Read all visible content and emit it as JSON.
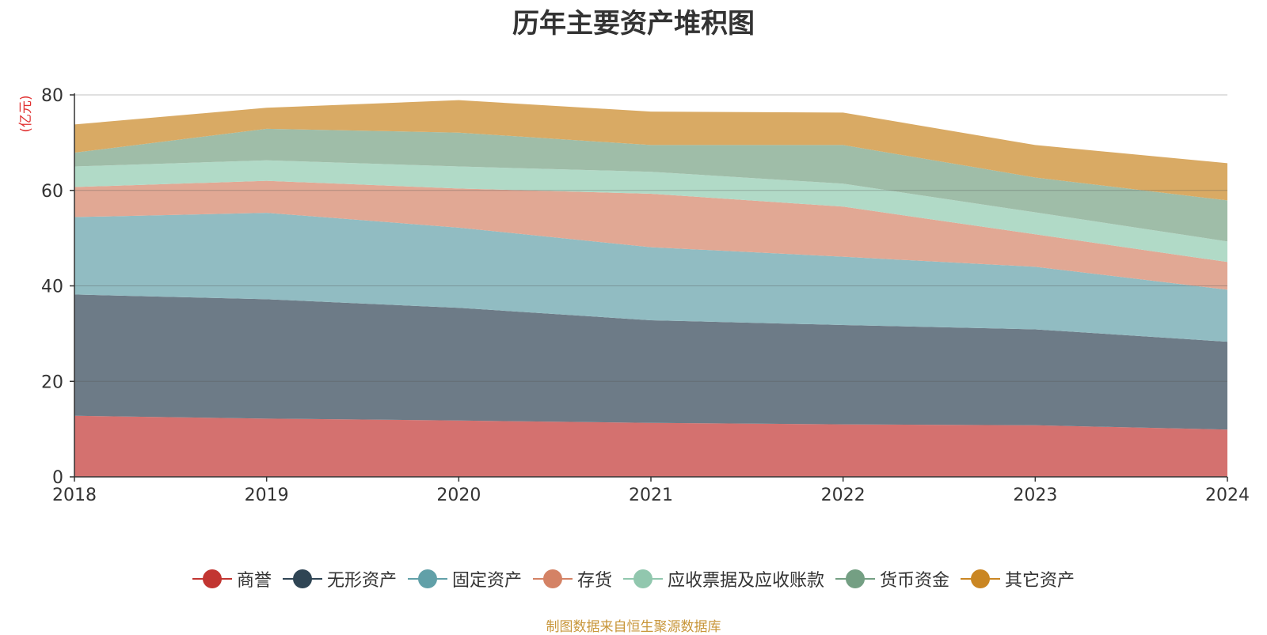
{
  "chart_data": {
    "type": "area",
    "stacked": true,
    "title": "历年主要资产堆积图",
    "ylabel": "(亿元)",
    "xlabel": "",
    "x": [
      "2018",
      "2019",
      "2020",
      "2021",
      "2022",
      "2023",
      "2024"
    ],
    "ylim": [
      0,
      80
    ],
    "yticks": [
      "0",
      "20",
      "40",
      "60",
      "80"
    ],
    "grid": true,
    "legend_position": "bottom",
    "series": [
      {
        "name": "商誉",
        "color": "#c23531",
        "fill": "#d4716f",
        "values": [
          12.8,
          12.2,
          11.8,
          11.3,
          11.0,
          10.8,
          9.9
        ]
      },
      {
        "name": "无形资产",
        "color": "#2f4554",
        "fill": "#6d7b87",
        "values": [
          25.4,
          25.0,
          23.6,
          21.5,
          20.8,
          20.1,
          18.4
        ]
      },
      {
        "name": "固定资产",
        "color": "#61a0a8",
        "fill": "#91bcc2",
        "values": [
          16.2,
          18.1,
          16.8,
          15.3,
          14.3,
          13.1,
          10.9
        ]
      },
      {
        "name": "存货",
        "color": "#d48265",
        "fill": "#e1a894",
        "values": [
          6.3,
          6.7,
          8.2,
          11.2,
          10.5,
          6.8,
          5.8
        ]
      },
      {
        "name": "应收票据及应收账款",
        "color": "#91c7ae",
        "fill": "#b1dac7",
        "values": [
          4.3,
          4.3,
          4.6,
          4.6,
          4.8,
          4.6,
          4.3
        ]
      },
      {
        "name": "货币资金",
        "color": "#749f83",
        "fill": "#9fbda8",
        "values": [
          2.9,
          6.6,
          7.1,
          5.6,
          8.1,
          7.3,
          8.6
        ]
      },
      {
        "name": "其它资产",
        "color": "#ca8622",
        "fill": "#d9aa64",
        "values": [
          5.9,
          4.4,
          6.8,
          7.0,
          6.8,
          6.8,
          7.8
        ]
      }
    ]
  },
  "source_note": "制图数据来自恒生聚源数据库"
}
